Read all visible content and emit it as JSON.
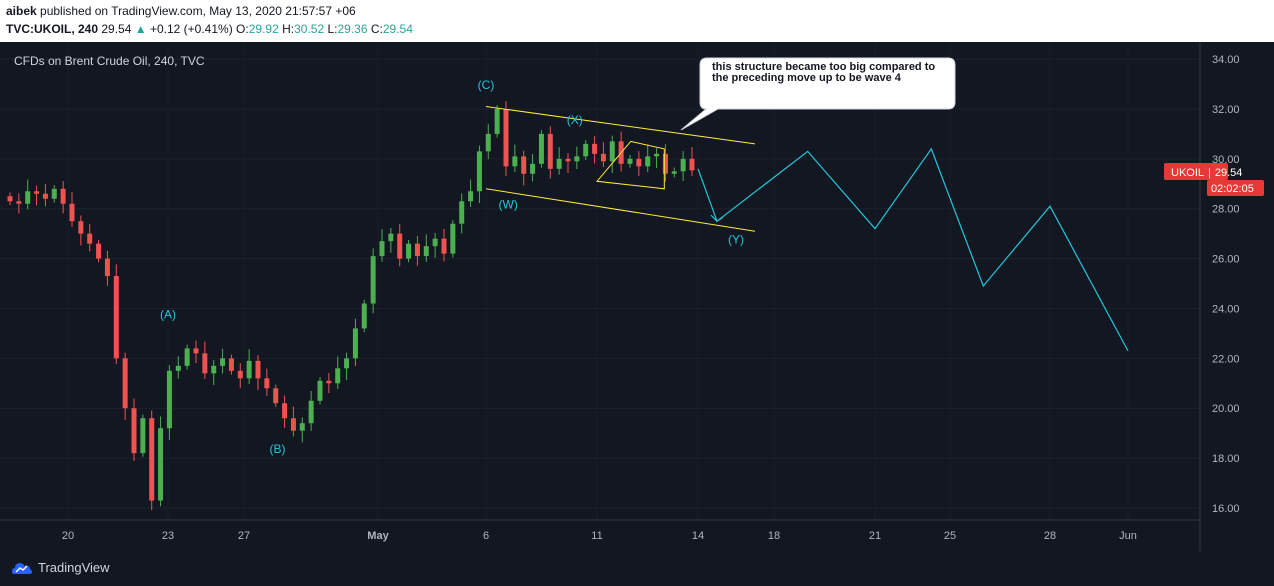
{
  "header": {
    "author": "aibek",
    "published_text": "published on TradingView.com, May 13, 2020 21:57:57 +06",
    "symbol": "TVC:UKOIL, 240",
    "last": "29.54",
    "change_arrow": "▲",
    "change": "+0.12 (+0.41%)",
    "o_label": "O:",
    "o": "29.92",
    "h_label": "H:",
    "h": "30.52",
    "l_label": "L:",
    "l": "29.36",
    "c_label": "C:",
    "c": "29.54"
  },
  "chart_title": "CFDs on Brent Crude Oil, 240, TVC",
  "price_badge": {
    "symbol": "UKOIL",
    "price": "29.54",
    "countdown": "02:02:05"
  },
  "annotation": "this structure became too big compared to the preceding move up to be wave 4",
  "wave_labels": [
    "(A)",
    "(B)",
    "(C)",
    "(W)",
    "(X)",
    "(Y)"
  ],
  "footer": {
    "brand": "TradingView"
  },
  "colors": {
    "bg": "#131722",
    "up": "#26a69a",
    "up_candle": "#4caf50",
    "down_candle": "#ef5350",
    "channel": "#ffeb3b",
    "projection": "#26c6da",
    "badge": "#e53935"
  },
  "chart_data": {
    "type": "candlestick",
    "title": "CFDs on Brent Crude Oil, 240, TVC",
    "ylim": [
      15.5,
      35.0
    ],
    "y_ticks": [
      "16.00",
      "18.00",
      "20.00",
      "22.00",
      "24.00",
      "26.00",
      "28.00",
      "30.00",
      "32.00",
      "34.00"
    ],
    "x_ticks": [
      "20",
      "23",
      "27",
      "May",
      "6",
      "11",
      "14",
      "18",
      "21",
      "25",
      "28",
      "Jun"
    ],
    "close_path": [
      28.3,
      28.2,
      28.7,
      28.6,
      28.4,
      28.8,
      28.2,
      27.5,
      27.0,
      26.6,
      26.0,
      25.3,
      22.0,
      20.0,
      18.2,
      19.6,
      16.3,
      19.2,
      21.5,
      21.7,
      22.4,
      22.2,
      21.4,
      21.7,
      22.0,
      21.5,
      21.2,
      21.9,
      21.2,
      20.8,
      20.2,
      19.6,
      19.1,
      19.4,
      20.3,
      21.1,
      21.0,
      21.6,
      22.0,
      23.2,
      24.2,
      26.1,
      26.7,
      27.0,
      26.0,
      26.6,
      26.1,
      26.5,
      26.8,
      26.2,
      27.4,
      28.3,
      28.7,
      30.3,
      31.0,
      32.0,
      29.7,
      30.1,
      29.4,
      29.8,
      31.0,
      29.6,
      30.0,
      29.9,
      30.1,
      30.6,
      30.2,
      29.9,
      30.7,
      29.8,
      30.0,
      29.7,
      30.1,
      30.2,
      29.4,
      29.5,
      30.0,
      29.54
    ],
    "channel_upper": [
      [
        "May 6",
        32.1
      ],
      [
        "May 17",
        30.6
      ]
    ],
    "channel_lower": [
      [
        "May 6",
        28.8
      ],
      [
        "May 17",
        27.1
      ]
    ],
    "x_triangle": [
      [
        "May 12",
        30.7
      ],
      [
        "May 13",
        30.4
      ],
      [
        "May 13",
        28.8
      ],
      [
        "May 11",
        29.1
      ]
    ],
    "projection": [
      [
        "May 14",
        29.6
      ],
      [
        "May 15",
        27.5
      ],
      [
        "May 19",
        30.3
      ],
      [
        "May 21",
        27.2
      ],
      [
        "May 24",
        30.4
      ],
      [
        "May 26",
        24.9
      ],
      [
        "May 28",
        28.1
      ],
      [
        "Jun 1",
        22.3
      ]
    ],
    "wave_positions": [
      {
        "label": "(A)",
        "date": "Apr 23",
        "price": 23.6
      },
      {
        "label": "(B)",
        "date": "Apr 28",
        "price": 18.2
      },
      {
        "label": "(C)",
        "date": "May 6",
        "price": 32.8
      },
      {
        "label": "(W)",
        "date": "May 7",
        "price": 28.0
      },
      {
        "label": "(X)",
        "date": "May 10",
        "price": 31.4
      },
      {
        "label": "(Y)",
        "date": "May 16",
        "price": 26.6
      }
    ]
  }
}
